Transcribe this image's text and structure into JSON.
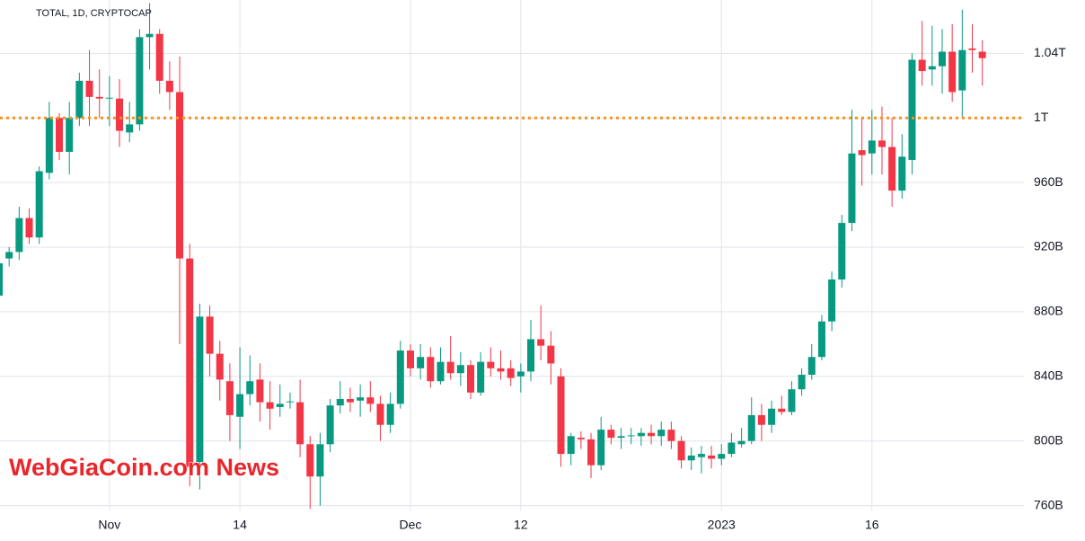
{
  "chart_data": {
    "type": "candlestick",
    "title": "TOTAL, 1D, CRYPTOCAP",
    "watermark": "WebGiaCoin.com News",
    "categories": [
      null,
      null,
      null,
      null,
      null,
      null,
      null,
      null,
      null,
      null,
      null,
      "Nov",
      null,
      null,
      null,
      null,
      null,
      null,
      null,
      null,
      null,
      null,
      null,
      null,
      "14",
      null,
      null,
      null,
      null,
      null,
      null,
      null,
      null,
      null,
      null,
      null,
      null,
      null,
      null,
      null,
      null,
      "Dec",
      null,
      null,
      null,
      null,
      null,
      null,
      null,
      null,
      null,
      null,
      "12",
      null,
      null,
      null,
      null,
      null,
      null,
      null,
      null,
      null,
      null,
      null,
      null,
      null,
      null,
      null,
      null,
      null,
      null,
      null,
      "2023",
      null,
      null,
      null,
      null,
      null,
      null,
      null,
      null,
      null,
      null,
      null,
      null,
      null,
      null,
      "16",
      null,
      null,
      null,
      null,
      null,
      null,
      null,
      null,
      null,
      null,
      null
    ],
    "open": [
      890,
      913,
      917,
      938,
      926,
      966,
      1000,
      979,
      1000,
      1023,
      1013,
      1012,
      1012,
      991,
      996,
      1050,
      1052,
      1023,
      1016,
      913,
      787,
      877,
      854,
      837,
      815,
      829,
      838,
      824,
      821,
      824,
      824,
      798,
      778,
      798,
      822,
      826,
      825,
      827,
      823,
      810,
      823,
      856,
      845,
      852,
      837,
      849,
      842,
      847,
      830,
      849,
      845,
      845,
      840,
      843,
      863,
      859,
      840,
      792,
      802,
      801,
      785,
      807,
      802,
      803,
      803,
      805,
      803,
      807,
      800,
      788,
      790,
      791,
      789,
      792,
      798,
      800,
      816,
      810,
      820,
      818,
      832,
      841,
      852,
      874,
      900,
      935,
      980,
      978,
      986,
      982,
      955,
      974,
      1036,
      1030,
      1032,
      1041,
      1017,
      1043,
      1041
    ],
    "high": [
      915,
      920,
      945,
      944,
      970,
      1010,
      1003,
      1010,
      1028,
      1042,
      1030,
      1026,
      1024,
      1010,
      1055,
      1071,
      1055,
      1035,
      1038,
      922,
      885,
      884,
      862,
      848,
      858,
      853,
      848,
      837,
      835,
      830,
      838,
      803,
      805,
      826,
      837,
      833,
      835,
      837,
      828,
      830,
      862,
      860,
      860,
      858,
      858,
      865,
      855,
      850,
      855,
      858,
      856,
      850,
      848,
      875,
      884,
      868,
      845,
      805,
      806,
      805,
      815,
      810,
      808,
      808,
      808,
      810,
      812,
      812,
      803,
      796,
      797,
      797,
      798,
      805,
      808,
      827,
      823,
      825,
      828,
      837,
      845,
      860,
      878,
      905,
      940,
      1005,
      1000,
      1005,
      1007,
      1000,
      990,
      1040,
      1060,
      1057,
      1055,
      1058,
      1067,
      1058,
      1048
    ],
    "low": [
      887,
      908,
      912,
      922,
      922,
      962,
      974,
      965,
      995,
      995,
      1000,
      995,
      982,
      985,
      992,
      1030,
      1015,
      1005,
      860,
      772,
      770,
      840,
      825,
      800,
      795,
      822,
      812,
      807,
      815,
      820,
      790,
      758,
      760,
      793,
      817,
      818,
      815,
      818,
      800,
      805,
      820,
      840,
      838,
      833,
      835,
      838,
      834,
      826,
      828,
      840,
      838,
      834,
      830,
      837,
      850,
      835,
      784,
      785,
      795,
      777,
      782,
      798,
      795,
      798,
      797,
      798,
      797,
      795,
      783,
      782,
      780,
      783,
      785,
      790,
      796,
      798,
      800,
      805,
      816,
      816,
      828,
      838,
      850,
      868,
      895,
      930,
      958,
      965,
      965,
      945,
      950,
      965,
      1020,
      1020,
      1015,
      1010,
      1000,
      1028,
      1020
    ],
    "close": [
      910,
      917,
      938,
      926,
      967,
      1000,
      979,
      1000,
      1023,
      1013,
      1012,
      1012.5,
      992,
      996,
      1050,
      1052,
      1023,
      1016,
      913,
      784,
      877,
      854,
      838,
      816,
      829,
      837,
      824,
      820,
      823,
      824.5,
      798,
      778,
      798,
      822,
      826,
      824,
      827,
      823,
      810,
      823,
      856,
      845,
      852,
      837,
      849,
      842,
      847,
      830,
      849,
      845,
      843,
      839,
      843,
      863,
      859,
      848,
      792,
      803,
      801,
      785,
      807,
      802,
      803,
      803.5,
      805,
      803,
      807,
      800,
      788,
      791,
      792,
      789,
      792,
      799,
      800,
      816,
      810,
      820,
      818,
      832,
      841,
      852,
      874,
      900,
      935,
      978,
      977,
      986,
      982,
      955,
      976,
      1036,
      1029,
      1032,
      1041,
      1016,
      1042,
      1042,
      1037
    ],
    "up_color": "#089981",
    "down_color": "#f23645",
    "ylim": [
      757,
      1073
    ],
    "yticks": [
      {
        "value": 760,
        "label": "760B"
      },
      {
        "value": 800,
        "label": "800B"
      },
      {
        "value": 840,
        "label": "840B"
      },
      {
        "value": 880,
        "label": "880B"
      },
      {
        "value": 920,
        "label": "920B"
      },
      {
        "value": 960,
        "label": "960B"
      },
      {
        "value": 1000,
        "label": "1T"
      },
      {
        "value": 1040,
        "label": "1.04T"
      }
    ],
    "grid": true,
    "reference_line": 1000,
    "reference_color": "#f7931a"
  }
}
